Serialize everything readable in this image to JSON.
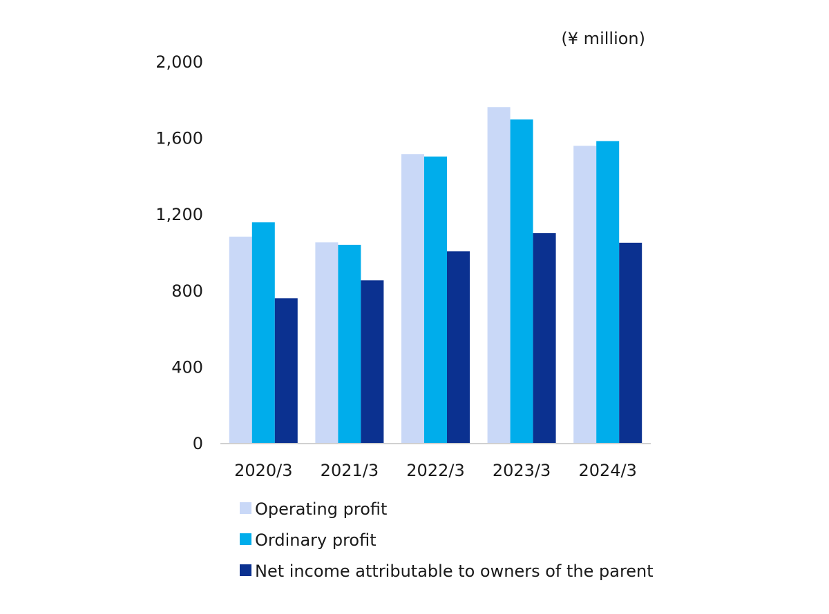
{
  "chart_data": {
    "type": "bar",
    "unit_label": "(¥ million)",
    "categories": [
      "2020/3",
      "2021/3",
      "2022/3",
      "2023/3",
      "2024/3"
    ],
    "series": [
      {
        "name": "Operating profit",
        "color": "#c9d8f7",
        "values": [
          1085,
          1055,
          1518,
          1764,
          1561
        ]
      },
      {
        "name": "Ordinary profit",
        "color": "#00adeb",
        "values": [
          1160,
          1042,
          1505,
          1699,
          1586
        ]
      },
      {
        "name": "Net income attributable to owners of the parent",
        "color": "#0b3190",
        "values": [
          762,
          856,
          1008,
          1103,
          1053
        ]
      }
    ],
    "ylim": [
      0,
      2000
    ],
    "yticks": [
      0,
      400,
      800,
      1200,
      1600,
      2000
    ],
    "ytick_labels": [
      "0",
      "400",
      "800",
      "1,200",
      "1,600",
      "2,000"
    ],
    "grid": false,
    "legend_position": "bottom"
  }
}
